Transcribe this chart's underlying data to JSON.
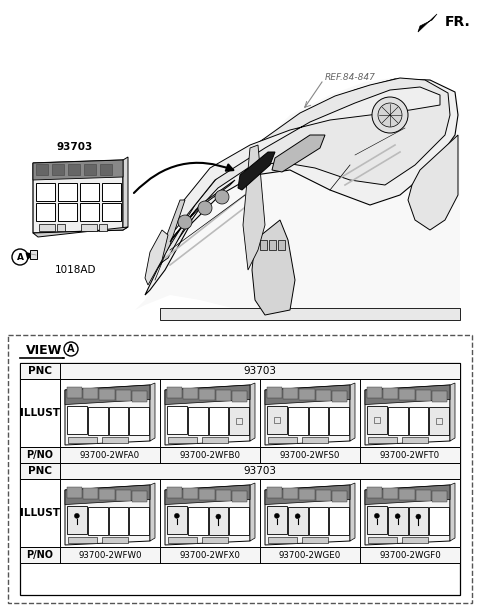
{
  "fr_label": "FR.",
  "ref_label": "REF.84-847",
  "part_label_93703": "93703",
  "part_label_1018AD": "1018AD",
  "bg_color": "#ffffff",
  "table": {
    "row1_pnc": "PNC",
    "row1_val": "93703",
    "row2_label": "ILLUST",
    "row3_label": "P/NO",
    "row1_parts": [
      "93700-2WFA0",
      "93700-2WFB0",
      "93700-2WFS0",
      "93700-2WFT0"
    ],
    "row2_pnc": "PNC",
    "row2_val": "93703",
    "row3_label2": "ILLUST",
    "row4_label": "P/NO",
    "row2_parts": [
      "93700-2WFW0",
      "93700-2WFX0",
      "93700-2WGE0",
      "93700-2WGF0"
    ]
  }
}
